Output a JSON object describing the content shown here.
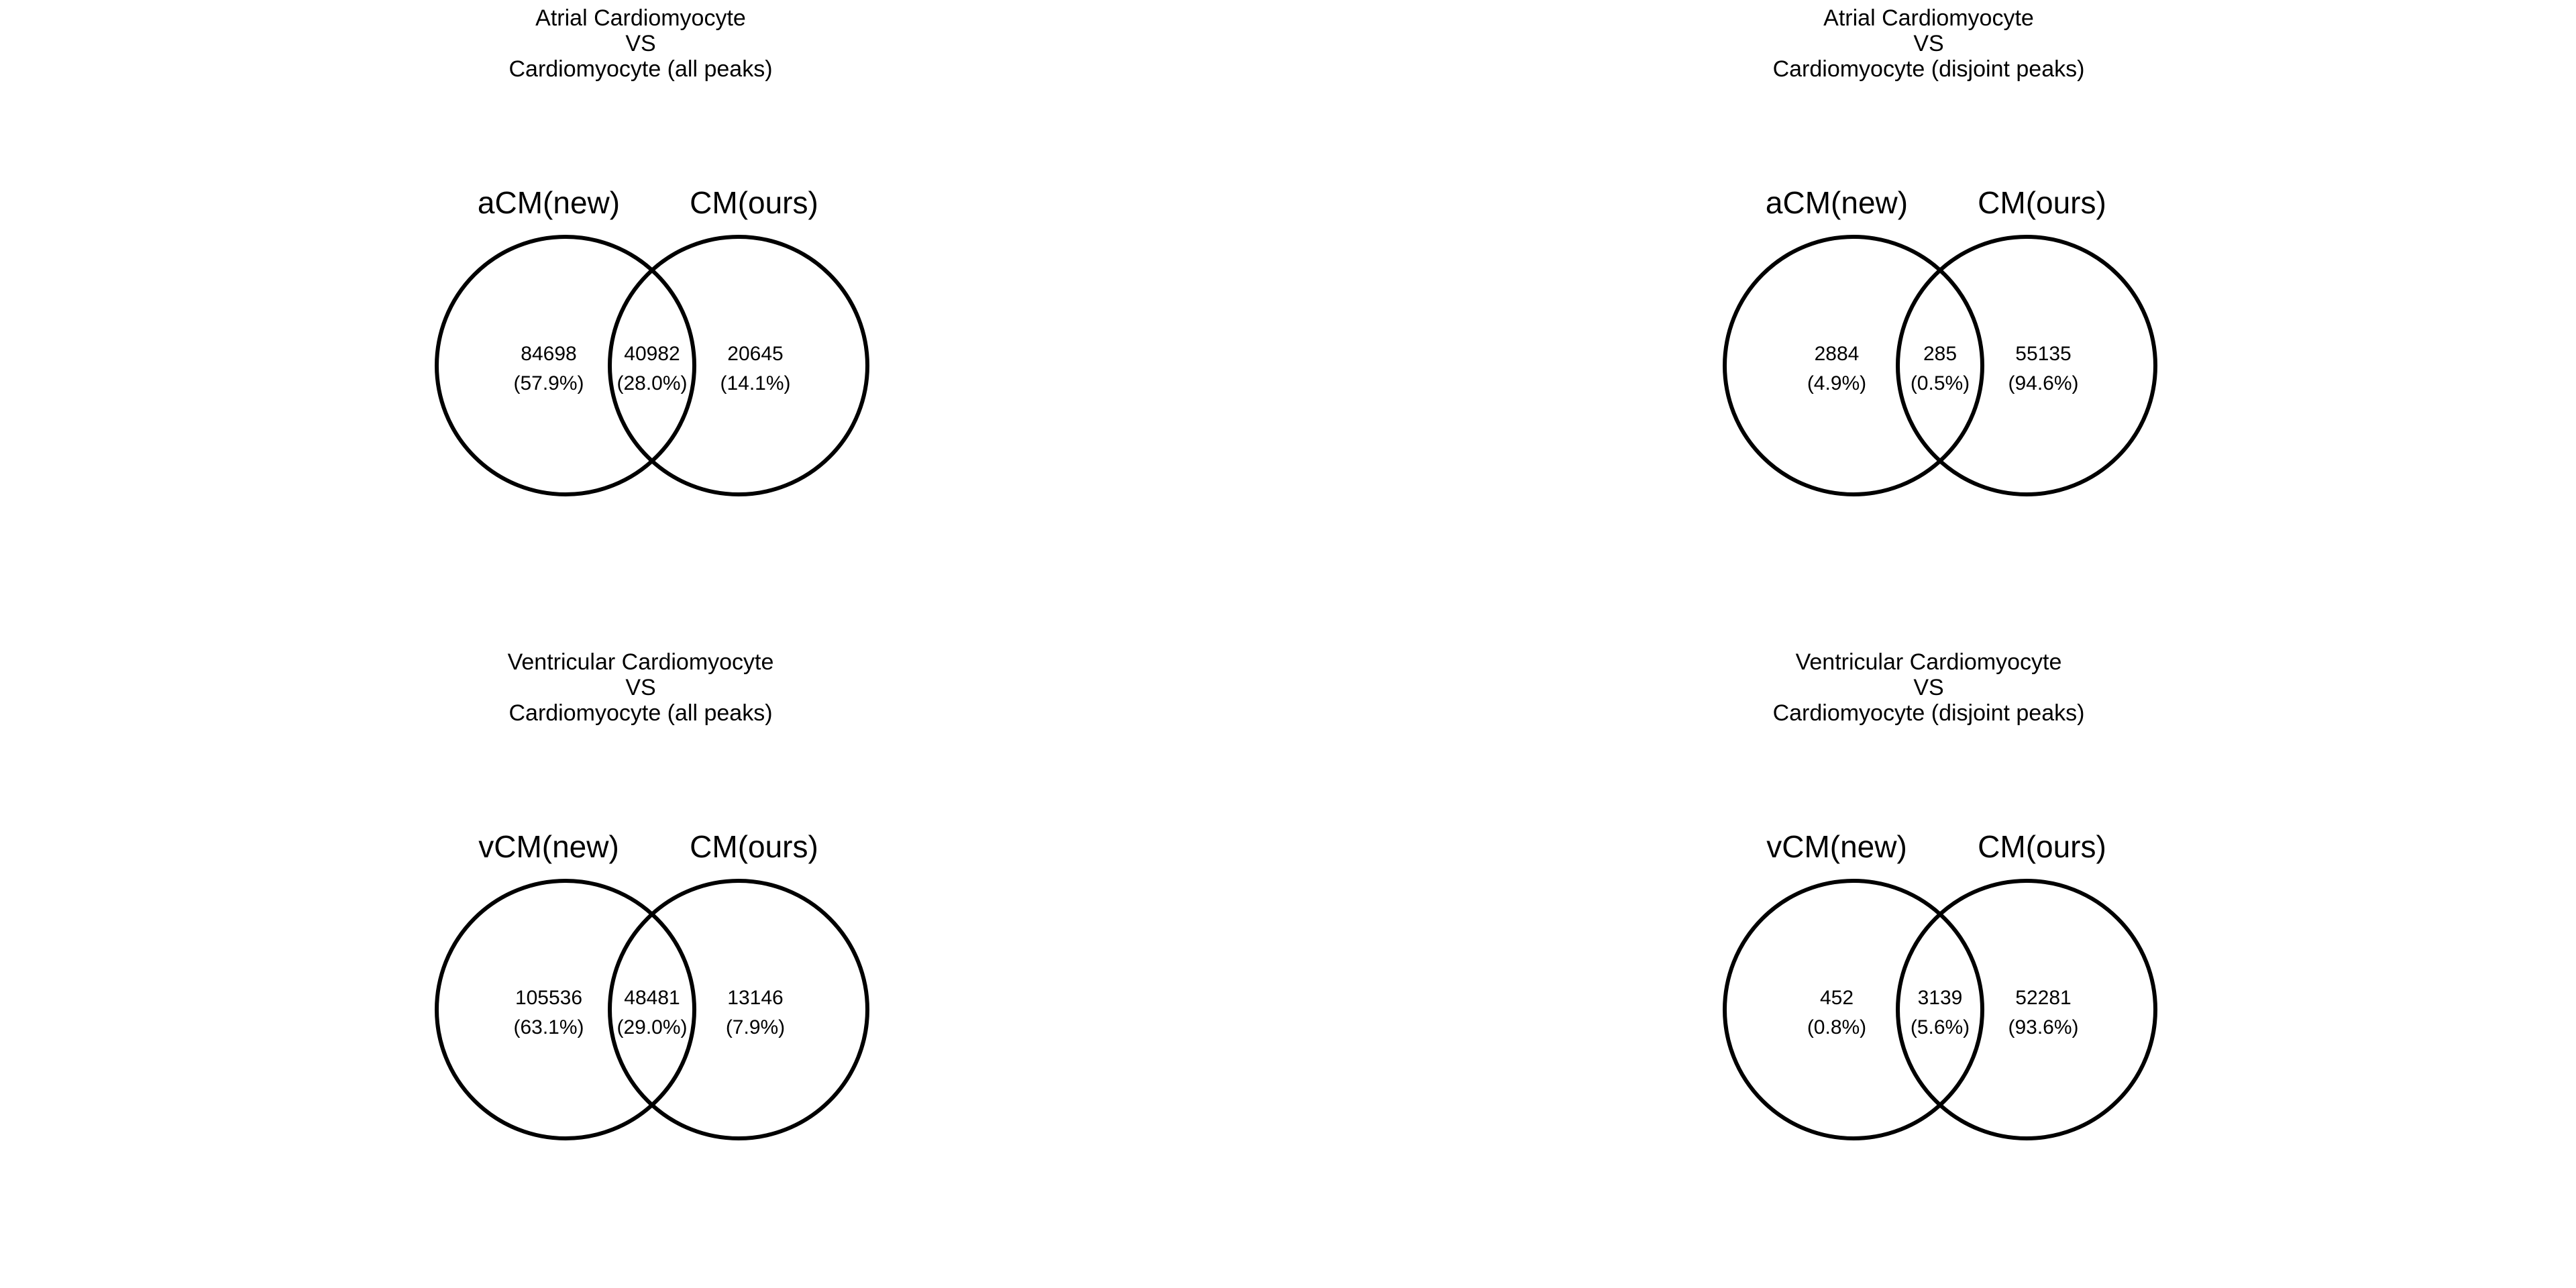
{
  "panels": [
    {
      "title": [
        "Atrial Cardiomyocyte",
        "VS",
        "Cardiomyocyte (all peaks)"
      ],
      "set_a": "aCM(new)",
      "set_b": "CM(ours)",
      "regions": {
        "a_only": {
          "count": "84698",
          "pct": "(57.9%)"
        },
        "both": {
          "count": "40982",
          "pct": "(28.0%)"
        },
        "b_only": {
          "count": "20645",
          "pct": "(14.1%)"
        }
      }
    },
    {
      "title": [
        "Atrial Cardiomyocyte",
        "VS",
        "Cardiomyocyte (disjoint peaks)"
      ],
      "set_a": "aCM(new)",
      "set_b": "CM(ours)",
      "regions": {
        "a_only": {
          "count": "2884",
          "pct": "(4.9%)"
        },
        "both": {
          "count": "285",
          "pct": "(0.5%)"
        },
        "b_only": {
          "count": "55135",
          "pct": "(94.6%)"
        }
      }
    },
    {
      "title": [
        "Ventricular Cardiomyocyte",
        "VS",
        "Cardiomyocyte (all peaks)"
      ],
      "set_a": "vCM(new)",
      "set_b": "CM(ours)",
      "regions": {
        "a_only": {
          "count": "105536",
          "pct": "(63.1%)"
        },
        "both": {
          "count": "48481",
          "pct": "(29.0%)"
        },
        "b_only": {
          "count": "13146",
          "pct": "(7.9%)"
        }
      }
    },
    {
      "title": [
        "Ventricular Cardiomyocyte",
        "VS",
        "Cardiomyocyte (disjoint peaks)"
      ],
      "set_a": "vCM(new)",
      "set_b": "CM(ours)",
      "regions": {
        "a_only": {
          "count": "452",
          "pct": "(0.8%)"
        },
        "both": {
          "count": "3139",
          "pct": "(5.6%)"
        },
        "b_only": {
          "count": "52281",
          "pct": "(93.6%)"
        }
      }
    }
  ],
  "colors": {
    "circle_stroke": "#000000",
    "background": "#ffffff",
    "text": "#000000"
  }
}
